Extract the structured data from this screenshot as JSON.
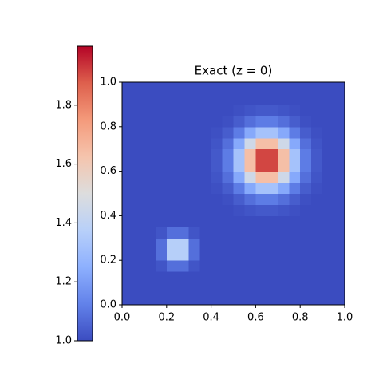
{
  "chart_data": {
    "type": "heatmap",
    "title": "Exact (z = 0)",
    "colormap": "coolwarm",
    "xlim": [
      0,
      1
    ],
    "ylim": [
      0,
      1
    ],
    "xticks": [
      {
        "value": 0,
        "label": "0.0"
      },
      0.2,
      0.4,
      0.6,
      0.8,
      {
        "value": 1,
        "label": "1.0"
      }
    ],
    "yticks": [
      {
        "value": 0,
        "label": "0.0"
      },
      0.2,
      0.4,
      0.6,
      0.8,
      {
        "value": 1,
        "label": "1.0"
      }
    ],
    "clim": [
      1,
      2
    ],
    "colorbar_ticks": [
      {
        "value": 1,
        "label": "1.0"
      },
      1.2,
      1.4,
      1.6,
      1.8
    ],
    "z": [
      [
        1,
        1,
        1,
        1,
        1,
        1,
        1,
        1,
        1,
        1,
        1,
        1,
        1,
        1,
        1,
        1,
        1,
        1,
        1,
        1
      ],
      [
        1,
        1,
        1,
        1,
        1,
        1,
        1,
        1,
        1,
        1,
        1,
        1,
        1,
        1,
        1,
        1,
        1,
        1,
        1,
        1
      ],
      [
        1,
        1,
        1,
        1,
        1,
        1,
        1,
        1,
        1,
        1,
        1,
        1,
        1,
        1,
        1,
        1,
        1,
        1,
        1,
        1
      ],
      [
        1,
        1,
        1,
        1.02,
        1.08,
        1.08,
        1.02,
        1,
        1,
        1,
        1,
        1,
        1,
        1,
        1,
        1,
        1,
        1,
        1,
        1
      ],
      [
        1,
        1,
        1,
        1.08,
        1.37,
        1.37,
        1.08,
        1,
        1,
        1,
        1,
        1,
        1,
        1,
        1,
        1,
        1,
        1,
        1,
        1
      ],
      [
        1,
        1,
        1,
        1.08,
        1.37,
        1.37,
        1.08,
        1,
        1,
        1,
        1,
        1,
        1,
        1,
        1,
        1,
        1,
        1,
        1,
        1
      ],
      [
        1,
        1,
        1,
        1.02,
        1.08,
        1.08,
        1.02,
        1,
        1,
        1,
        1,
        1,
        1,
        1,
        1,
        1,
        1,
        1,
        1,
        1
      ],
      [
        1,
        1,
        1,
        1,
        1,
        1,
        1,
        1,
        1,
        1,
        1,
        1,
        1,
        1,
        1,
        1,
        1,
        1,
        1,
        1
      ],
      [
        1,
        1,
        1,
        1,
        1,
        1,
        1,
        1,
        1,
        1,
        1.01,
        1.02,
        1.03,
        1.03,
        1.02,
        1.01,
        1,
        1,
        1,
        1
      ],
      [
        1,
        1,
        1,
        1,
        1,
        1,
        1,
        1,
        1,
        1.01,
        1.04,
        1.08,
        1.11,
        1.11,
        1.08,
        1.04,
        1.01,
        1,
        1,
        1
      ],
      [
        1,
        1,
        1,
        1,
        1,
        1,
        1,
        1,
        1.01,
        1.04,
        1.11,
        1.23,
        1.32,
        1.32,
        1.23,
        1.11,
        1.04,
        1.01,
        1,
        1
      ],
      [
        1,
        1,
        1,
        1,
        1,
        1,
        1,
        1,
        1.02,
        1.08,
        1.23,
        1.45,
        1.64,
        1.64,
        1.45,
        1.23,
        1.08,
        1.02,
        1,
        1
      ],
      [
        1,
        1,
        1,
        1,
        1,
        1,
        1,
        1,
        1.03,
        1.11,
        1.32,
        1.64,
        1.91,
        1.91,
        1.64,
        1.32,
        1.11,
        1.03,
        1,
        1
      ],
      [
        1,
        1,
        1,
        1,
        1,
        1,
        1,
        1,
        1.03,
        1.11,
        1.32,
        1.64,
        1.91,
        1.91,
        1.64,
        1.32,
        1.11,
        1.03,
        1,
        1
      ],
      [
        1,
        1,
        1,
        1,
        1,
        1,
        1,
        1,
        1.02,
        1.08,
        1.23,
        1.45,
        1.64,
        1.64,
        1.45,
        1.23,
        1.08,
        1.02,
        1,
        1
      ],
      [
        1,
        1,
        1,
        1,
        1,
        1,
        1,
        1,
        1.01,
        1.04,
        1.11,
        1.23,
        1.32,
        1.32,
        1.23,
        1.11,
        1.04,
        1.01,
        1,
        1
      ],
      [
        1,
        1,
        1,
        1,
        1,
        1,
        1,
        1,
        1,
        1.01,
        1.04,
        1.08,
        1.11,
        1.11,
        1.08,
        1.04,
        1.01,
        1,
        1,
        1
      ],
      [
        1,
        1,
        1,
        1,
        1,
        1,
        1,
        1,
        1,
        1,
        1.01,
        1.02,
        1.03,
        1.03,
        1.02,
        1.01,
        1,
        1,
        1,
        1
      ],
      [
        1,
        1,
        1,
        1,
        1,
        1,
        1,
        1,
        1,
        1,
        1,
        1,
        1,
        1,
        1,
        1,
        1,
        1,
        1,
        1
      ],
      [
        1,
        1,
        1,
        1,
        1,
        1,
        1,
        1,
        1,
        1,
        1,
        1,
        1,
        1,
        1,
        1,
        1,
        1,
        1,
        1
      ]
    ]
  }
}
